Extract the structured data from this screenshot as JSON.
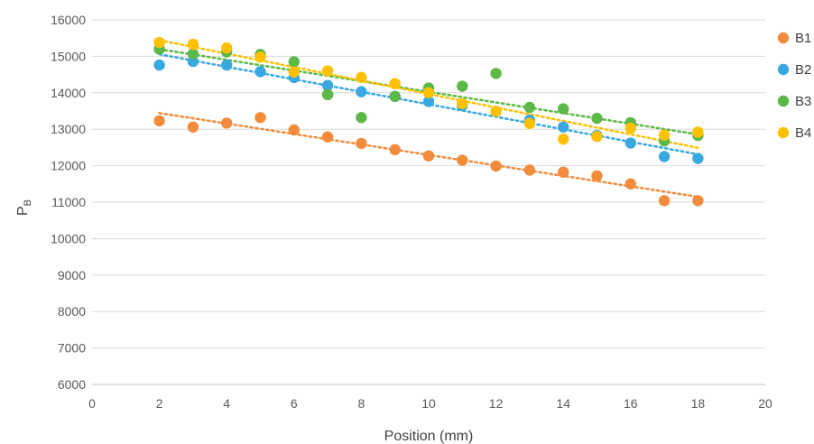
{
  "chart_data": {
    "type": "scatter",
    "title": "",
    "xlabel": "Position (mm)",
    "ylabel_main": "P",
    "ylabel_sub": "B",
    "xlim": [
      0,
      20
    ],
    "ylim": [
      6000,
      16000
    ],
    "xticks": [
      0,
      2,
      4,
      6,
      8,
      10,
      12,
      14,
      16,
      18,
      20
    ],
    "yticks": [
      6000,
      7000,
      8000,
      9000,
      10000,
      11000,
      12000,
      13000,
      14000,
      15000,
      16000
    ],
    "grid": "horizontal",
    "legend_position": "right",
    "trendlines": "linear, dotted",
    "series": [
      {
        "name": "B1",
        "color": "#f28c3c",
        "x": [
          2,
          3,
          4,
          5,
          6,
          7,
          8,
          9,
          10,
          11,
          12,
          13,
          14,
          15,
          16,
          17,
          18
        ],
        "y": [
          13230,
          13060,
          13170,
          13320,
          12980,
          12790,
          12610,
          12440,
          12270,
          12150,
          11990,
          11880,
          11820,
          11720,
          11500,
          11040,
          11040
        ]
      },
      {
        "name": "B2",
        "color": "#3aa8e0",
        "x": [
          2,
          3,
          4,
          5,
          6,
          7,
          8,
          9,
          10,
          11,
          12,
          13,
          14,
          15,
          16,
          17,
          18
        ],
        "y": [
          14760,
          14860,
          14760,
          14580,
          14420,
          14200,
          14030,
          13900,
          13760,
          13650,
          13490,
          13250,
          13060,
          12830,
          12620,
          12250,
          12200
        ]
      },
      {
        "name": "B3",
        "color": "#5cb848",
        "x": [
          2,
          3,
          4,
          5,
          6,
          7,
          8,
          9,
          10,
          11,
          12,
          13,
          14,
          15,
          16,
          17,
          18
        ],
        "y": [
          15200,
          15070,
          15120,
          15050,
          14850,
          13950,
          13320,
          13900,
          14130,
          14180,
          14530,
          13600,
          13560,
          13300,
          13180,
          12680,
          12830
        ]
      },
      {
        "name": "B4",
        "color": "#ffc000",
        "x": [
          2,
          3,
          4,
          5,
          6,
          7,
          8,
          9,
          10,
          11,
          12,
          13,
          14,
          15,
          16,
          17,
          18
        ],
        "y": [
          15380,
          15330,
          15230,
          14980,
          14570,
          14600,
          14420,
          14250,
          14000,
          13700,
          13490,
          13160,
          12730,
          12800,
          13030,
          12840,
          12920
        ]
      }
    ]
  }
}
